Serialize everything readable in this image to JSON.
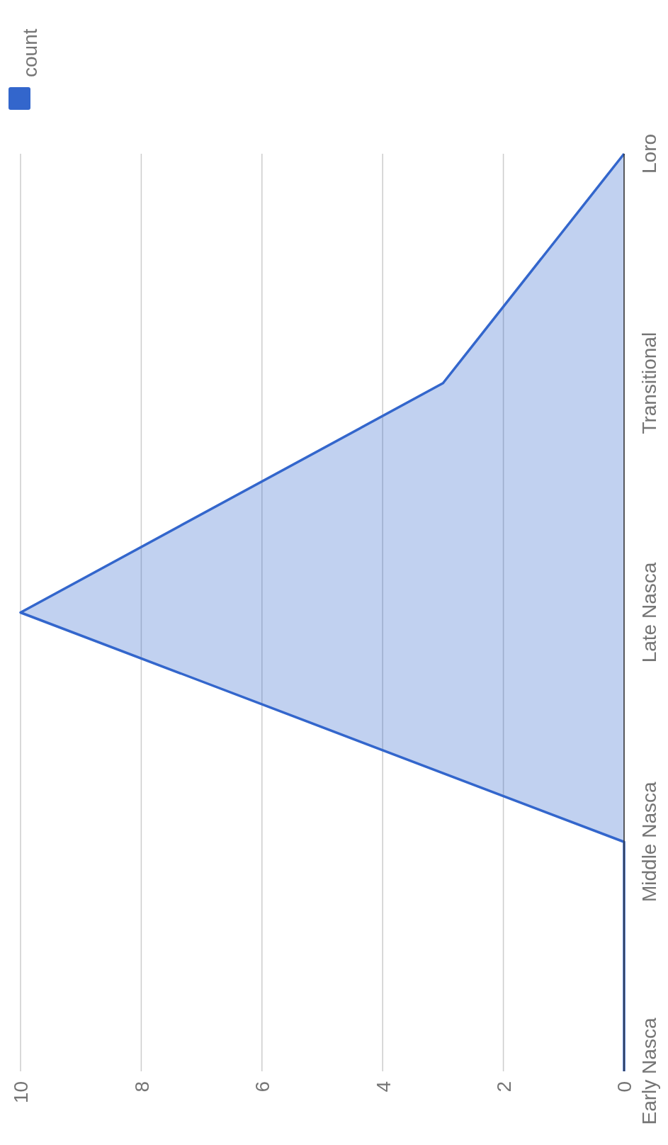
{
  "chart_data": {
    "type": "area",
    "orientation": "horizontal",
    "categories": [
      "Loro",
      "Transitional",
      "Late Nasca",
      "Middle Nasca",
      "Early Nasca"
    ],
    "series": [
      {
        "name": "count",
        "color": "#3366cc",
        "values": [
          0,
          3,
          10,
          0,
          0
        ]
      }
    ],
    "xlim": [
      10,
      0
    ],
    "xticks": [
      10,
      8,
      6,
      4,
      2,
      0
    ],
    "grid": "x",
    "legend": "top left"
  }
}
